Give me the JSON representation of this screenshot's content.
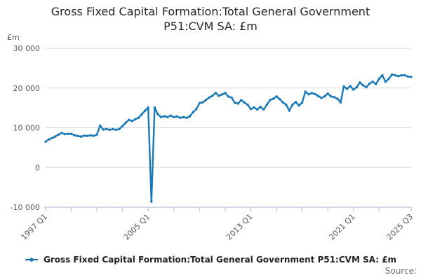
{
  "title": {
    "line1": "Gross Fixed Capital Formation:Total General Government",
    "line2": "P51:CVM SA: £m"
  },
  "y_axis": {
    "unit_label": "£m",
    "ticks": [
      {
        "label": "30 000",
        "value": 30000
      },
      {
        "label": "20 000",
        "value": 20000
      },
      {
        "label": "10 000",
        "value": 10000
      },
      {
        "label": "0",
        "value": 0
      },
      {
        "label": "-10 000",
        "value": -10000
      }
    ]
  },
  "x_axis": {
    "labels": [
      {
        "text": "1997 Q1",
        "q": 0
      },
      {
        "text": "2005 Q1",
        "q": 32
      },
      {
        "text": "2013 Q1",
        "q": 64
      },
      {
        "text": "2021 Q1",
        "q": 96
      },
      {
        "text": "2025 Q3",
        "q": 114
      }
    ]
  },
  "legend": {
    "label": "Gross Fixed Capital Formation:Total General Government P51:CVM SA: £m",
    "marker": "line-with-dot-icon"
  },
  "source": {
    "label": "Source:"
  },
  "colors": {
    "line": "#1878b8",
    "grid": "#d9d9d9",
    "axis": "#c3cce3",
    "tick_text": "#595959",
    "title_text": "#262626"
  },
  "chart_data": {
    "type": "line",
    "title": "Gross Fixed Capital Formation:Total General Government P51:CVM SA: £m",
    "ylabel": "£m",
    "ylim": [
      -10000,
      30000
    ],
    "grid": "horizontal",
    "legend_position": "bottom",
    "frequency": "quarterly",
    "start_quarter": "1997 Q1",
    "end_quarter": "2025 Q3",
    "n_points": 115,
    "series": [
      {
        "name": "Gross Fixed Capital Formation:Total General Government P51:CVM SA: £m",
        "values": [
          6500,
          7050,
          7400,
          7800,
          8280,
          8700,
          8400,
          8460,
          8460,
          8100,
          7930,
          7760,
          8000,
          7930,
          8100,
          7950,
          8300,
          10550,
          9550,
          9690,
          9510,
          9650,
          9510,
          9690,
          10450,
          11280,
          12000,
          11700,
          12160,
          12500,
          13400,
          14300,
          15100,
          -8600,
          15100,
          13390,
          12680,
          12900,
          12680,
          13040,
          12680,
          12860,
          12500,
          12680,
          12500,
          12900,
          13930,
          14700,
          16200,
          16400,
          17000,
          17600,
          18040,
          18750,
          18040,
          18390,
          18750,
          17860,
          17600,
          16300,
          16100,
          16950,
          16340,
          15800,
          14700,
          15100,
          14600,
          15250,
          14600,
          15800,
          17000,
          17300,
          17870,
          17200,
          16400,
          15800,
          14300,
          15800,
          16500,
          15600,
          16300,
          19100,
          18400,
          18700,
          18500,
          18000,
          17500,
          17900,
          18600,
          17900,
          17700,
          17300,
          16400,
          20400,
          19800,
          20500,
          19600,
          20200,
          21400,
          20700,
          20200,
          21100,
          21600,
          21000,
          22300,
          23200,
          21600,
          22300,
          23400,
          23200,
          23000,
          23200,
          23200,
          22900,
          22800
        ]
      }
    ]
  }
}
